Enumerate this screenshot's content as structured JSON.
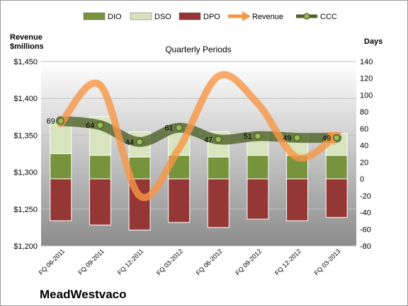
{
  "chart_data": {
    "type": "bar",
    "title": "Quarterly Periods",
    "company": "MeadWestvaco",
    "left_axis": {
      "label_line1": "Revenue",
      "label_line2": "$millions",
      "range": [
        1200,
        1450
      ],
      "ticks": [
        "$1,200",
        "$1,250",
        "$1,300",
        "$1,350",
        "$1,400",
        "$1,450"
      ]
    },
    "right_axis": {
      "label": "Days",
      "range": [
        -80,
        140
      ],
      "ticks": [
        "-80",
        "-60",
        "-40",
        "-20",
        "0",
        "20",
        "40",
        "60",
        "80",
        "100",
        "120",
        "140"
      ]
    },
    "categories": [
      "FQ 06-2011",
      "FQ 09-2011",
      "FQ 12-2011",
      "FQ 03-2012",
      "FQ 06-2012",
      "FQ 09-2012",
      "FQ 12-2012",
      "FQ 03-2013"
    ],
    "legend": [
      "DIO",
      "DSO",
      "DPO",
      "Revenue",
      "CCC"
    ],
    "series": [
      {
        "name": "DIO",
        "axis": "right",
        "values": [
          30,
          28,
          26,
          28,
          26,
          28,
          28,
          28
        ]
      },
      {
        "name": "DSO",
        "axis": "right",
        "values": [
          40,
          46,
          30,
          29,
          30,
          28,
          26,
          26
        ]
      },
      {
        "name": "DPO",
        "axis": "right",
        "values": [
          -50,
          -55,
          -61,
          -52,
          -58,
          -48,
          -50,
          -46
        ]
      },
      {
        "name": "Revenue",
        "axis": "left",
        "values": [
          1366,
          1418,
          1268,
          1332,
          1430,
          1393,
          1320,
          1350
        ]
      },
      {
        "name": "CCC",
        "axis": "right",
        "values": [
          69,
          64,
          44,
          61,
          47,
          51,
          49,
          49
        ]
      }
    ],
    "ccc_labels": [
      "69",
      "64",
      "44",
      "61",
      "47",
      "51",
      "49",
      "49"
    ],
    "colors": {
      "DIO": "#77933c",
      "DSO": "#d7e4bd",
      "DPO": "#953735",
      "Revenue": "#f79646",
      "CCC": "#4f6228"
    },
    "grid": true
  }
}
